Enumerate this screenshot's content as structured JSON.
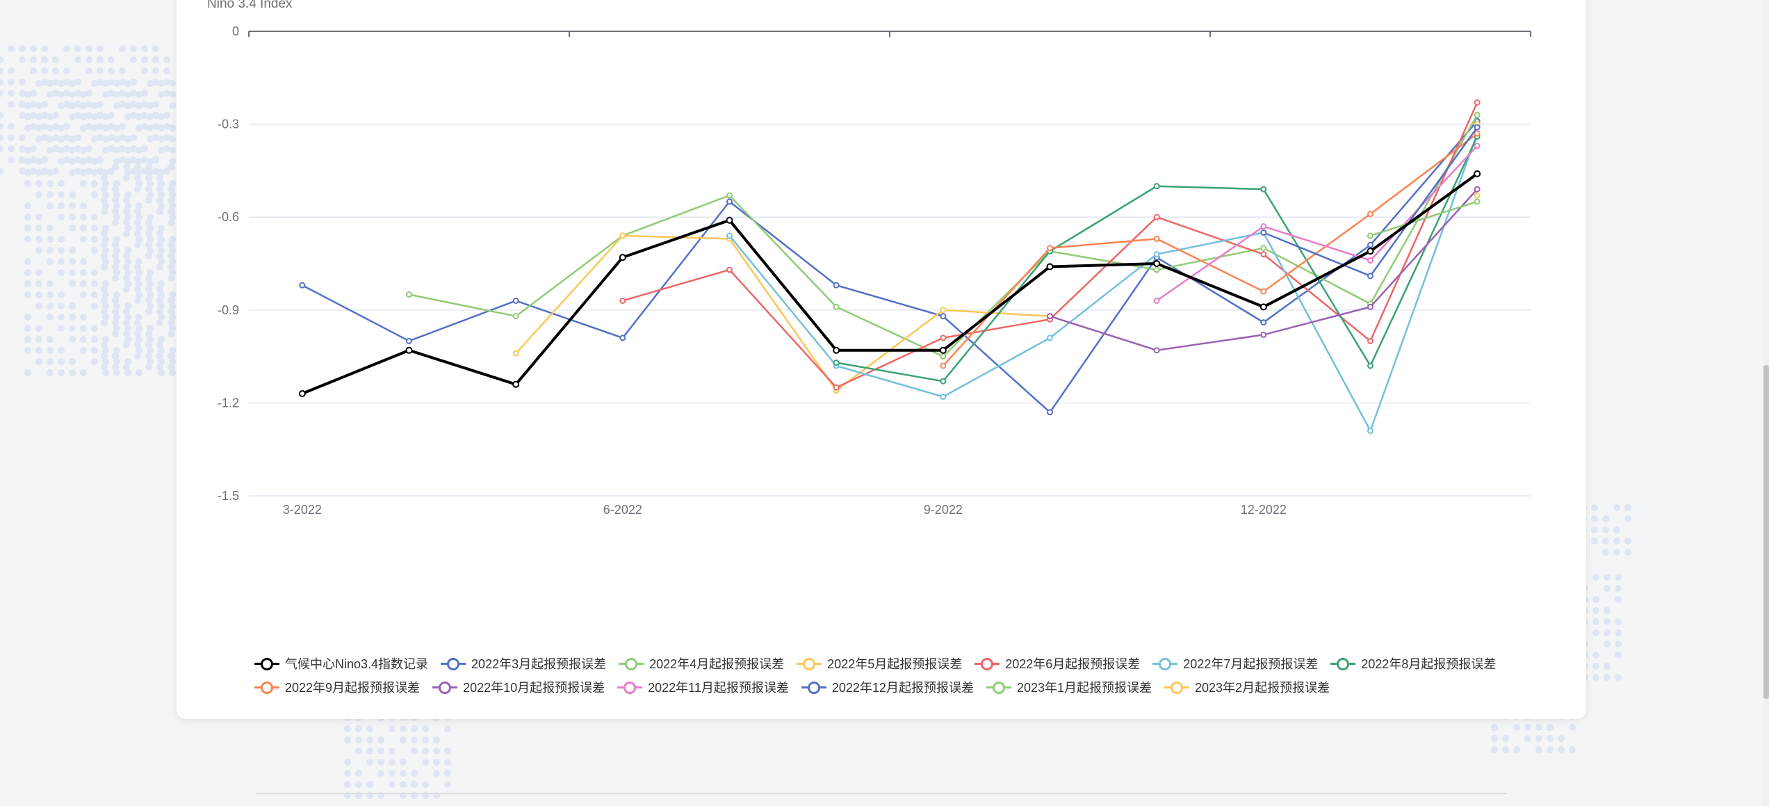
{
  "chart_data": {
    "type": "line",
    "ylabel": "Niño 3.4 Index",
    "ylim": [
      -1.5,
      0
    ],
    "yticks": [
      "0",
      "-0.3",
      "-0.6",
      "-0.9",
      "-1.2",
      "-1.5"
    ],
    "categories": [
      "3-2022",
      "4-2022",
      "5-2022",
      "6-2022",
      "7-2022",
      "8-2022",
      "9-2022",
      "10-2022",
      "11-2022",
      "12-2022",
      "1-2023",
      "2-2023"
    ],
    "xtick_labels": {
      "0": "3-2022",
      "3": "6-2022",
      "6": "9-2022",
      "9": "12-2022"
    },
    "grid": true,
    "legend_position": "bottom",
    "series": [
      {
        "name": "气候中心Nino3.4指数记录",
        "color": "#000000",
        "bold": true,
        "values": [
          -1.17,
          -1.03,
          -1.14,
          -0.73,
          -0.61,
          -1.03,
          -1.03,
          -0.76,
          -0.75,
          -0.89,
          -0.71,
          -0.46
        ]
      },
      {
        "name": "2022年3月起报预报误差",
        "color": "#5470c6",
        "values": [
          -0.82,
          -1.0,
          -0.87,
          -0.99,
          -0.55,
          -0.82,
          -0.92,
          -1.23,
          -0.73,
          -0.94,
          -0.69,
          -0.29
        ]
      },
      {
        "name": "2022年4月起报预报误差",
        "color": "#91cc75",
        "values": [
          null,
          -0.85,
          -0.92,
          -0.66,
          -0.53,
          -0.89,
          -1.05,
          -0.71,
          -0.77,
          -0.7,
          -0.88,
          -0.27
        ]
      },
      {
        "name": "2022年5月起报预报误差",
        "color": "#fac858",
        "values": [
          null,
          null,
          -1.04,
          -0.66,
          -0.67,
          -1.16,
          -0.9,
          -0.92,
          null,
          null,
          null,
          -0.3
        ]
      },
      {
        "name": "2022年6月起报预报误差",
        "color": "#ee6666",
        "values": [
          null,
          null,
          null,
          -0.87,
          -0.77,
          -1.15,
          -0.99,
          -0.93,
          -0.6,
          -0.72,
          -1.0,
          -0.23
        ]
      },
      {
        "name": "2022年7月起报预报误差",
        "color": "#73c0de",
        "values": [
          null,
          null,
          null,
          null,
          -0.66,
          -1.08,
          -1.18,
          -0.99,
          -0.72,
          -0.65,
          -1.29,
          -0.33
        ]
      },
      {
        "name": "2022年8月起报预报误差",
        "color": "#3ba272",
        "values": [
          null,
          null,
          null,
          null,
          null,
          -1.07,
          -1.13,
          -0.71,
          -0.5,
          -0.51,
          -1.08,
          -0.34
        ]
      },
      {
        "name": "2022年9月起报预报误差",
        "color": "#fc8452",
        "values": [
          null,
          null,
          null,
          null,
          null,
          null,
          -1.08,
          -0.7,
          -0.67,
          -0.84,
          -0.59,
          -0.33
        ]
      },
      {
        "name": "2022年10月起报预报误差",
        "color": "#9a60b4",
        "values": [
          null,
          null,
          null,
          null,
          null,
          null,
          null,
          -0.92,
          -1.03,
          -0.98,
          -0.89,
          -0.51
        ]
      },
      {
        "name": "2022年11月起报预报误差",
        "color": "#ea7ccc",
        "values": [
          null,
          null,
          null,
          null,
          null,
          null,
          null,
          null,
          -0.87,
          -0.63,
          -0.74,
          -0.37
        ]
      },
      {
        "name": "2022年12月起报预报误差",
        "color": "#5470c6",
        "values": [
          null,
          null,
          null,
          null,
          null,
          null,
          null,
          null,
          null,
          -0.65,
          -0.79,
          -0.31
        ]
      },
      {
        "name": "2023年1月起报预报误差",
        "color": "#91cc75",
        "values": [
          null,
          null,
          null,
          null,
          null,
          null,
          null,
          null,
          null,
          null,
          -0.66,
          -0.55
        ]
      },
      {
        "name": "2023年2月起报预报误差",
        "color": "#fac858",
        "values": [
          null,
          null,
          null,
          null,
          null,
          null,
          null,
          null,
          null,
          null,
          null,
          -0.53
        ]
      }
    ]
  }
}
